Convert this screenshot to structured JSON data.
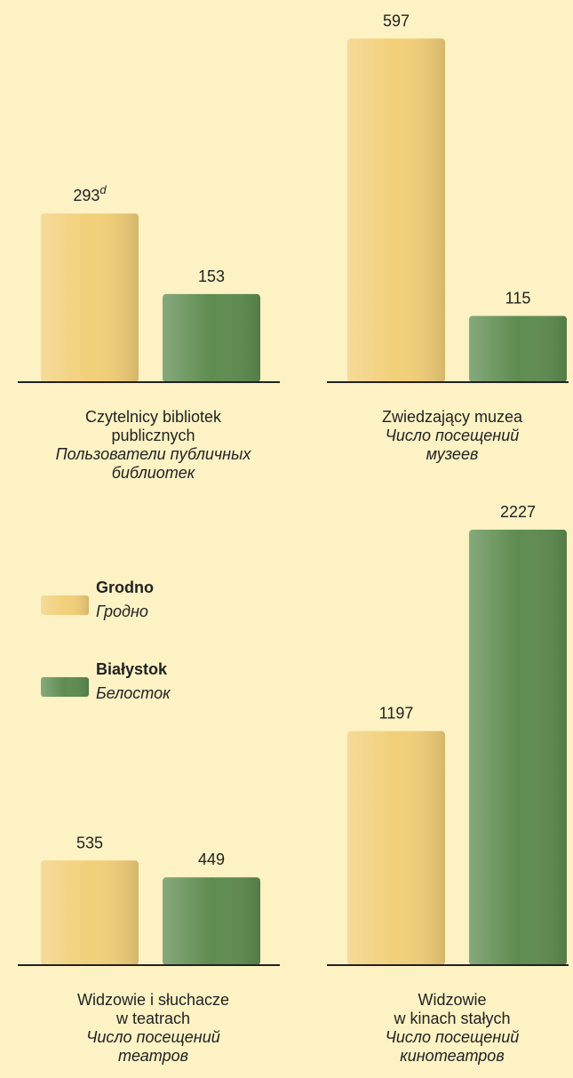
{
  "legend": [
    {
      "name": "Grodno",
      "name_ru": "Гродно",
      "color": "#f2cf78"
    },
    {
      "name": "Białystok",
      "name_ru": "Белосток",
      "color": "#5e8c50"
    }
  ],
  "chart_data": [
    {
      "type": "bar",
      "title": [
        "Czytelnicy bibliotek",
        "publicznych"
      ],
      "title_ru": [
        "Пользователи публичных",
        "библиотек"
      ],
      "values": [
        293,
        153
      ],
      "value_notes": [
        "d",
        null
      ],
      "ylim": [
        0,
        650
      ]
    },
    {
      "type": "bar",
      "title": [
        "Zwiedzający muzea"
      ],
      "title_ru": [
        "Число посещений",
        "музеев"
      ],
      "values": [
        597,
        115
      ],
      "ylim": [
        0,
        650
      ]
    },
    {
      "type": "bar",
      "title": [
        "Widzowie i słuchacze",
        "w teatrach"
      ],
      "title_ru": [
        "Число посещений",
        "театров"
      ],
      "values": [
        535,
        449
      ],
      "ylim": [
        0,
        2300
      ]
    },
    {
      "type": "bar",
      "title": [
        "Widzowie",
        "w kinach stałych"
      ],
      "title_ru": [
        "Число посещений",
        "кинотеатров"
      ],
      "values": [
        1197,
        2227
      ],
      "ylim": [
        0,
        2300
      ]
    }
  ]
}
